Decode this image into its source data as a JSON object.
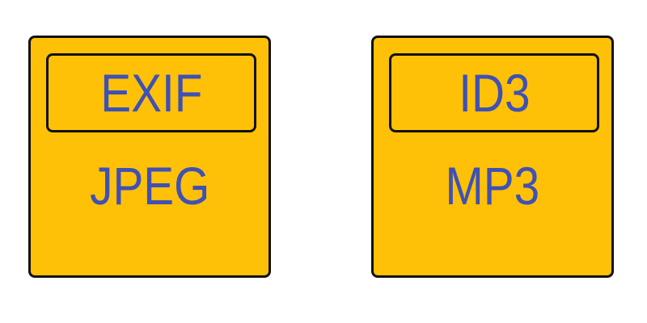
{
  "colors": {
    "box_fill": "#FFC107",
    "border": "#111111",
    "text": "#3F51B5",
    "background": "#FFFFFF"
  },
  "files": [
    {
      "metadata": "EXIF",
      "format": "JPEG"
    },
    {
      "metadata": "ID3",
      "format": "MP3"
    }
  ]
}
